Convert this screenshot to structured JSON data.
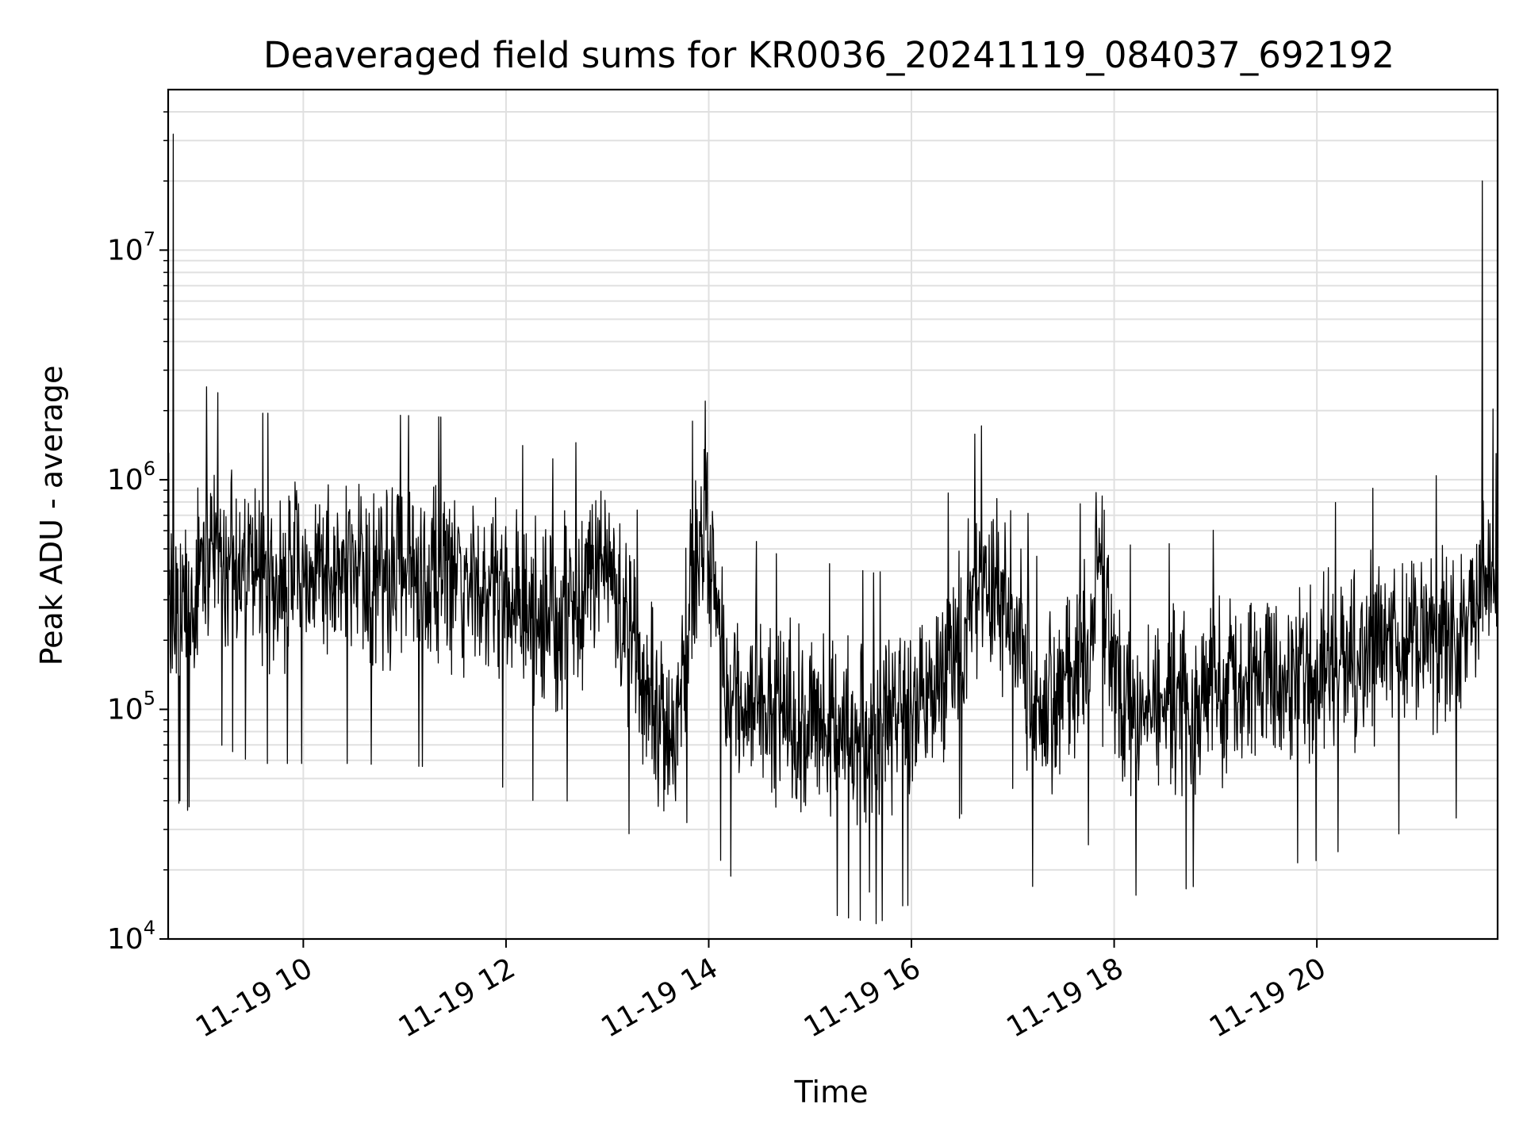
{
  "chart_data": {
    "type": "line",
    "title": "Deaveraged field sums for KR0036_20241119_084037_692192",
    "xlabel": "Time",
    "ylabel": "Peak ADU - average",
    "yscale": "log",
    "ylim": [
      10000,
      50000000
    ],
    "xlim": [
      "2024-11-19 08:40",
      "2024-11-19 21:47"
    ],
    "x_ticks": [
      {
        "t": "2024-11-19 10:00",
        "label": "11-19 10"
      },
      {
        "t": "2024-11-19 12:00",
        "label": "11-19 12"
      },
      {
        "t": "2024-11-19 14:00",
        "label": "11-19 14"
      },
      {
        "t": "2024-11-19 16:00",
        "label": "11-19 16"
      },
      {
        "t": "2024-11-19 18:00",
        "label": "11-19 18"
      },
      {
        "t": "2024-11-19 20:00",
        "label": "11-19 20"
      }
    ],
    "y_ticks": [
      {
        "value": 10000,
        "base": "10",
        "exp": "4"
      },
      {
        "value": 100000,
        "base": "10",
        "exp": "5"
      },
      {
        "value": 1000000,
        "base": "10",
        "exp": "6"
      },
      {
        "value": 10000000,
        "base": "10",
        "exp": "7"
      }
    ],
    "grid": true,
    "line_color": "#000000",
    "grid_color": "#e0e0e0",
    "series": [
      {
        "x": [
          "2024-11-19 08:40",
          "2024-11-19 08:44",
          "2024-11-19 08:48",
          "2024-11-19 08:52",
          "2024-11-19 09:00",
          "2024-11-19 09:10",
          "2024-11-19 09:30",
          "2024-11-19 10:00",
          "2024-11-19 10:30",
          "2024-11-19 11:00",
          "2024-11-19 11:30",
          "2024-11-19 12:00",
          "2024-11-19 12:30",
          "2024-11-19 13:00",
          "2024-11-19 13:20",
          "2024-11-19 13:40",
          "2024-11-19 13:50",
          "2024-11-19 13:58",
          "2024-11-19 14:10",
          "2024-11-19 14:40",
          "2024-11-19 15:10",
          "2024-11-19 15:40",
          "2024-11-19 16:10",
          "2024-11-19 16:40",
          "2024-11-19 17:00",
          "2024-11-19 17:15",
          "2024-11-19 17:30",
          "2024-11-19 17:45",
          "2024-11-19 17:52",
          "2024-11-19 18:00",
          "2024-11-19 18:30",
          "2024-11-19 19:00",
          "2024-11-19 19:30",
          "2024-11-19 20:00",
          "2024-11-19 20:30",
          "2024-11-19 21:00",
          "2024-11-19 21:20",
          "2024-11-19 21:35",
          "2024-11-19 21:42",
          "2024-11-19 21:47"
        ],
        "y": [
          300000,
          320000,
          290000,
          280000,
          600000,
          550000,
          450000,
          450000,
          450000,
          440000,
          430000,
          350000,
          280000,
          450000,
          150000,
          80000,
          400000,
          900000,
          150000,
          110000,
          100000,
          90000,
          130000,
          400000,
          350000,
          100000,
          150000,
          200000,
          700000,
          120000,
          120000,
          140000,
          160000,
          170000,
          210000,
          230000,
          250000,
          320000,
          430000,
          520000
        ],
        "noise": {
          "low": 0.3,
          "high": 2.5
        },
        "spikes": [
          {
            "t": "2024-11-19 08:43",
            "value": 32000000
          },
          {
            "t": "2024-11-19 08:47",
            "value": 40000
          },
          {
            "t": "2024-11-19 13:58",
            "value": 2200000
          },
          {
            "t": "2024-11-19 14:07",
            "value": 22000
          },
          {
            "t": "2024-11-19 15:35",
            "value": 16000
          },
          {
            "t": "2024-11-19 15:58",
            "value": 14000
          },
          {
            "t": "2024-11-19 21:38",
            "value": 20000000
          },
          {
            "t": "2024-11-19 21:46",
            "value": 1300000
          }
        ]
      }
    ]
  }
}
